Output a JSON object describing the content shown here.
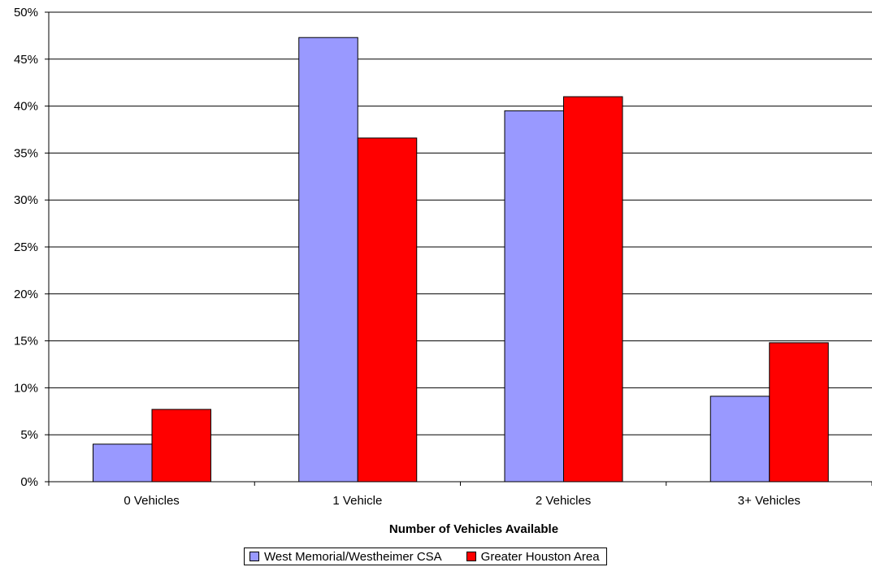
{
  "chart_data": {
    "type": "bar",
    "categories": [
      "0 Vehicles",
      "1 Vehicle",
      "2 Vehicles",
      "3+ Vehicles"
    ],
    "series": [
      {
        "name": "West Memorial/Westheimer CSA",
        "values": [
          4.0,
          47.3,
          39.5,
          9.1
        ],
        "color": "#9999ff"
      },
      {
        "name": "Greater Houston Area",
        "values": [
          7.7,
          36.6,
          41.0,
          14.8
        ],
        "color": "#ff0000"
      }
    ],
    "title": "",
    "xlabel": "Number of Vehicles Available",
    "ylabel": "",
    "ylim": [
      0,
      50
    ],
    "yticks": [
      "0%",
      "5%",
      "10%",
      "15%",
      "20%",
      "25%",
      "30%",
      "35%",
      "40%",
      "45%",
      "50%"
    ],
    "grid": true,
    "legend_position": "bottom"
  }
}
